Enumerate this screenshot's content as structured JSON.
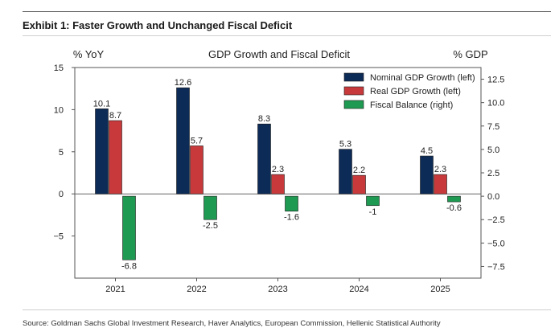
{
  "exhibit_title": "Exhibit 1: Faster Growth and Unchanged Fiscal Deficit",
  "source": "Source: Goldman Sachs Global Investment Research, Haver Analytics, European Commission, Hellenic Statistical Authority",
  "chart_data": {
    "type": "bar",
    "title": "GDP Growth and Fiscal Deficit",
    "ylabel_left": "% YoY",
    "ylabel_right": "% GDP",
    "categories": [
      "2021",
      "2022",
      "2023",
      "2024",
      "2025"
    ],
    "ylim_left": [
      -10,
      15
    ],
    "ylim_right": [
      -8.75,
      13.75
    ],
    "yticks_left": [
      {
        "value": 15,
        "label": "15"
      },
      {
        "value": 10,
        "label": "10"
      },
      {
        "value": 5,
        "label": "5"
      },
      {
        "value": 0,
        "label": "0"
      },
      {
        "value": -5,
        "label": "−5"
      }
    ],
    "yticks_right": [
      {
        "value": 12.5,
        "label": "12.5"
      },
      {
        "value": 10.0,
        "label": "10.0"
      },
      {
        "value": 7.5,
        "label": "7.5"
      },
      {
        "value": 5.0,
        "label": "5.0"
      },
      {
        "value": 2.5,
        "label": "2.5"
      },
      {
        "value": 0.0,
        "label": "0.0"
      },
      {
        "value": -2.5,
        "label": "−2.5"
      },
      {
        "value": -5.0,
        "label": "−5.0"
      },
      {
        "value": -7.5,
        "label": "−7.5"
      }
    ],
    "legend_position": "top-right",
    "grid": false,
    "series": [
      {
        "name": "Nominal GDP Growth (left)",
        "axis": "left",
        "color": "#0d2b57",
        "values": [
          10.1,
          12.6,
          8.3,
          5.3,
          4.5
        ],
        "labels": [
          "10.1",
          "12.6",
          "8.3",
          "5.3",
          "4.5"
        ]
      },
      {
        "name": "Real GDP Growth (left)",
        "axis": "left",
        "color": "#c8393b",
        "values": [
          8.7,
          5.7,
          2.3,
          2.2,
          2.3
        ],
        "labels": [
          "8.7",
          "5.7",
          "2.3",
          "2.2",
          "2.3"
        ]
      },
      {
        "name": "Fiscal Balance (right)",
        "axis": "right",
        "color": "#1e9a52",
        "values": [
          -6.8,
          -2.5,
          -1.6,
          -1.0,
          -0.6
        ],
        "labels": [
          "-6.8",
          "-2.5",
          "-1.6",
          "-1",
          "-0.6"
        ]
      }
    ]
  }
}
